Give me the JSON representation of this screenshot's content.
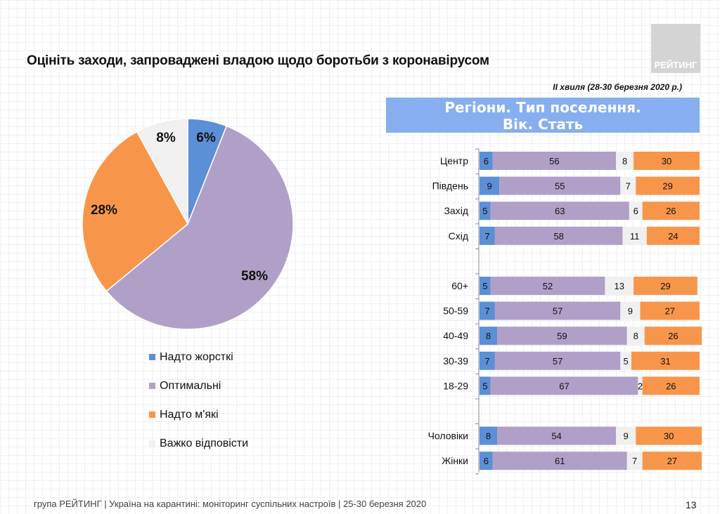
{
  "header": {
    "title": "Оцініть заходи, запроваджені владою щодо боротьби з коронавірусом",
    "logo_text": "РЕЙТИНГ",
    "wave": "II хвиля (28-30 березня 2020 р.)",
    "banner_line1": "Регіони. Тип поселення.",
    "banner_line2": "Вік. Стать"
  },
  "colors": {
    "harsh": "#5b8fd6",
    "optimal": "#b0a0c8",
    "soft": "#f7964a",
    "hard_to_say": "#f0f0f0"
  },
  "chart_data": [
    {
      "type": "pie",
      "slices": [
        {
          "name": "Надто жорсткі",
          "value": 6,
          "label": "6%"
        },
        {
          "name": "Оптимальні",
          "value": 58,
          "label": "58%"
        },
        {
          "name": "Надто м'які",
          "value": 28,
          "label": "28%"
        },
        {
          "name": "Важко відповісти",
          "value": 8,
          "label": "8%"
        }
      ],
      "legend": "bottom"
    },
    {
      "type": "bar",
      "orientation": "horizontal",
      "stacked": true,
      "categories": [
        "Центр",
        "Південь",
        "Захід",
        "Схід",
        "",
        "60+",
        "50-59",
        "40-49",
        "30-39",
        "18-29",
        "",
        "Чоловіки",
        "Жінки"
      ],
      "series": [
        {
          "name": "Надто жорсткі",
          "values": [
            6,
            9,
            5,
            7,
            null,
            5,
            7,
            8,
            7,
            5,
            null,
            8,
            6
          ]
        },
        {
          "name": "Оптимальні",
          "values": [
            56,
            55,
            63,
            58,
            null,
            52,
            57,
            59,
            57,
            67,
            null,
            54,
            61
          ]
        },
        {
          "name": "Важко відповісти",
          "values": [
            8,
            7,
            6,
            11,
            null,
            13,
            9,
            8,
            5,
            2,
            null,
            9,
            7
          ]
        },
        {
          "name": "Надто м'які",
          "values": [
            30,
            29,
            26,
            24,
            null,
            29,
            27,
            26,
            31,
            26,
            null,
            30,
            27
          ]
        }
      ],
      "xlim": [
        0,
        100
      ]
    }
  ],
  "footer": {
    "text": "група РЕЙТИНГ  |  Україна на карантині: моніторинг суспільних настроїв  |  25-30 березня 2020",
    "page": "13"
  }
}
